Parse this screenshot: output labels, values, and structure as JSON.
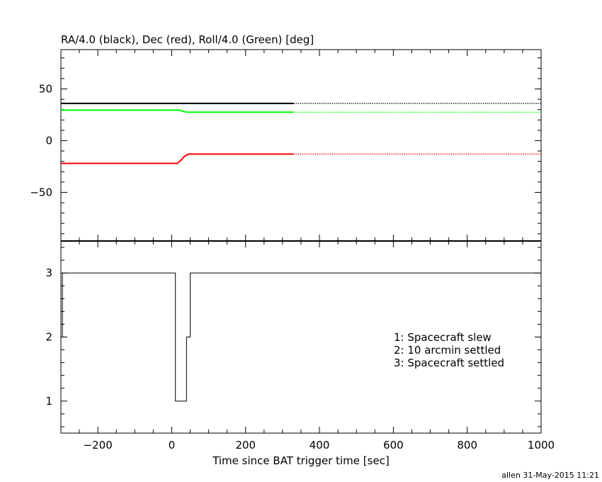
{
  "footer": "allen 31-May-2015 11:21",
  "chart_data": [
    {
      "type": "line",
      "title": "RA/4.0 (black), Dec (red), Roll/4.0 (Green) [deg]",
      "xlim": [
        -300,
        1000
      ],
      "ylim": [
        -97,
        88
      ],
      "yticks": [
        -50,
        0,
        50
      ],
      "series": [
        {
          "color": "#000000",
          "x": [
            -300,
            330
          ],
          "y": [
            36,
            36
          ],
          "x_dotted": [
            330,
            1000
          ],
          "y_dotted": [
            36,
            36
          ]
        },
        {
          "color": "#ff0000",
          "x": [
            -300,
            15,
            25,
            35,
            45,
            330
          ],
          "y": [
            -22,
            -22,
            -19,
            -15,
            -13,
            -13
          ],
          "x_dotted": [
            330,
            1000
          ],
          "y_dotted": [
            -13,
            -13
          ]
        },
        {
          "color": "#00ff00",
          "x": [
            -300,
            20,
            40,
            330
          ],
          "y": [
            29.5,
            29.5,
            27.5,
            27.5
          ],
          "x_dotted": [
            330,
            1000
          ],
          "y_dotted": [
            27.5,
            27.5
          ]
        }
      ]
    },
    {
      "type": "line",
      "step": true,
      "xlabel": "Time since BAT trigger time [sec]",
      "xlim": [
        -300,
        1000
      ],
      "ylim": [
        0.5,
        3.5
      ],
      "xticks": [
        -200,
        0,
        200,
        400,
        600,
        800,
        1000
      ],
      "yticks": [
        1,
        2,
        3
      ],
      "legend": [
        "1: Spacecraft slew",
        "2: 10 arcmin settled",
        "3: Spacecraft settled"
      ],
      "series": [
        {
          "color": "#000000",
          "x": [
            -300,
            -296,
            -296,
            -294,
            -294,
            10,
            10,
            40,
            40,
            50,
            50,
            1000
          ],
          "y": [
            2,
            2,
            3,
            3,
            3,
            3,
            1,
            1,
            2,
            2,
            3,
            3
          ]
        }
      ]
    }
  ]
}
